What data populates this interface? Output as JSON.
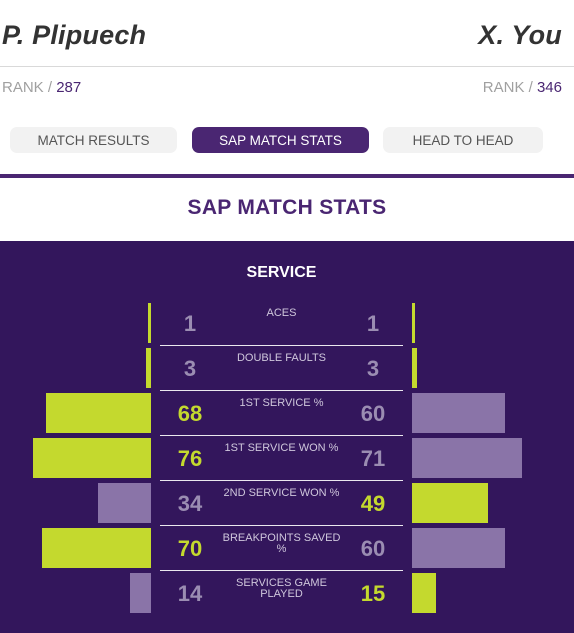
{
  "players": {
    "left": {
      "name": "P. Plipuech",
      "rank_label": "RANK / ",
      "rank": "287"
    },
    "right": {
      "name": "X. You",
      "rank_label": "RANK / ",
      "rank": "346"
    }
  },
  "tabs": [
    {
      "label": "MATCH RESULTS",
      "active": false
    },
    {
      "label": "SAP MATCH STATS",
      "active": true
    },
    {
      "label": "HEAD TO HEAD",
      "active": false
    }
  ],
  "section_title": "SAP MATCH STATS",
  "service": {
    "heading": "SERVICE",
    "rows": [
      {
        "label": "ACES",
        "left": "1",
        "right": "1",
        "leader": "tie",
        "left_fill": 0.02,
        "right_fill": 0.02
      },
      {
        "label": "DOUBLE FAULTS",
        "left": "3",
        "right": "3",
        "leader": "tie",
        "left_fill": 0.04,
        "right_fill": 0.04
      },
      {
        "label": "1ST SERVICE %",
        "left": "68",
        "right": "60",
        "leader": "left",
        "left_fill": 0.84,
        "right_fill": 0.74
      },
      {
        "label": "1ST SERVICE WON %",
        "left": "76",
        "right": "71",
        "leader": "left",
        "left_fill": 0.94,
        "right_fill": 0.88
      },
      {
        "label": "2ND SERVICE WON %",
        "left": "34",
        "right": "49",
        "leader": "right",
        "left_fill": 0.42,
        "right_fill": 0.61
      },
      {
        "label": "BREAKPOINTS SAVED %",
        "left": "70",
        "right": "60",
        "leader": "left",
        "left_fill": 0.87,
        "right_fill": 0.74
      },
      {
        "label": "SERVICES GAME PLAYED",
        "left": "14",
        "right": "15",
        "leader": "right",
        "left_fill": 0.17,
        "right_fill": 0.19
      }
    ]
  },
  "colors": {
    "brand_purple": "#4a2672",
    "panel_bg": "#33165c",
    "highlight_green": "#c4d92e",
    "muted_bar": "#8a74a8",
    "muted_value": "#9b8db2"
  }
}
